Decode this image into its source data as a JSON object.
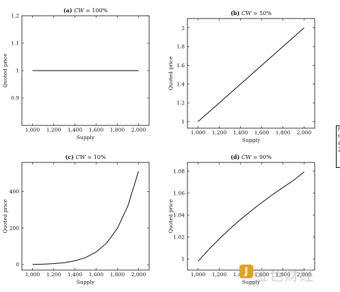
{
  "side_text": [
    "h",
    "n",
    "a",
    "2"
  ],
  "watermark": {
    "logo": "J",
    "text": "金色财经"
  },
  "chart_data": [
    {
      "type": "line",
      "title": "(a) CW = 100%",
      "title_prefix": "(a) ",
      "title_var": "CW",
      "title_rest": " = 100%",
      "xlabel": "Supply",
      "ylabel": "Quoted price",
      "xlim": [
        900,
        2100
      ],
      "ylim": [
        0.8,
        1.2
      ],
      "xticks": [
        1000,
        1200,
        1400,
        1600,
        1800,
        2000
      ],
      "xtick_labels": [
        "1,000",
        "1,200",
        "1,400",
        "1,600",
        "1,800",
        "2,000"
      ],
      "yticks": [
        0.9,
        1,
        1.1,
        1.2
      ],
      "ytick_labels": [
        "0.9",
        "1",
        "1.1",
        "1.2"
      ],
      "x": [
        1000,
        1200,
        1400,
        1600,
        1800,
        2000
      ],
      "y": [
        1,
        1,
        1,
        1,
        1,
        1
      ]
    },
    {
      "type": "line",
      "title": "(b) CW = 50%",
      "title_prefix": "(b) ",
      "title_var": "CW",
      "title_rest": " = 50%",
      "xlabel": "Supply",
      "ylabel": "Quoted price",
      "xlim": [
        900,
        2100
      ],
      "ylim": [
        0.93,
        2.1
      ],
      "xticks": [
        1000,
        1200,
        1400,
        1600,
        1800,
        2000
      ],
      "xtick_labels": [
        "1,000",
        "1,200",
        "1,400",
        "1,600",
        "1,800",
        "2,000"
      ],
      "yticks": [
        1,
        1.2,
        1.4,
        1.6,
        1.8,
        2
      ],
      "ytick_labels": [
        "1",
        "1.2",
        "1.4",
        "1.6",
        "1.8",
        "2"
      ],
      "x": [
        1000,
        1200,
        1400,
        1600,
        1800,
        2000
      ],
      "y": [
        1,
        1.2,
        1.4,
        1.6,
        1.8,
        2
      ]
    },
    {
      "type": "line",
      "title": "(c) CW = 10%",
      "title_prefix": "(c) ",
      "title_var": "CW",
      "title_rest": " = 10%",
      "xlabel": "Supply",
      "ylabel": "Quoted price",
      "xlim": [
        900,
        2100
      ],
      "ylim": [
        -30,
        560
      ],
      "xticks": [
        1000,
        1200,
        1400,
        1600,
        1800,
        2000
      ],
      "xtick_labels": [
        "1,000",
        "1,200",
        "1,400",
        "1,600",
        "1,800",
        "2,000"
      ],
      "yticks": [
        0,
        200,
        400
      ],
      "ytick_labels": [
        "0",
        "200",
        "400"
      ],
      "x": [
        1000,
        1100,
        1200,
        1300,
        1400,
        1500,
        1600,
        1700,
        1800,
        1900,
        2000
      ],
      "y": [
        1,
        2.4,
        5.2,
        10.6,
        20.7,
        38.4,
        68.7,
        118.6,
        198.4,
        322.7,
        512
      ]
    },
    {
      "type": "line",
      "title": "(d) CW = 90%",
      "title_prefix": "(d) ",
      "title_var": "CW",
      "title_rest": " = 90%",
      "xlabel": "Supply",
      "ylabel": "Quoted price",
      "xlim": [
        900,
        2100
      ],
      "ylim": [
        0.99,
        1.088
      ],
      "xticks": [
        1000,
        1200,
        1400,
        1600,
        1800,
        2000
      ],
      "xtick_labels": [
        "1,000",
        "1,200",
        "1,400",
        "1,600",
        "1,800",
        "2,000"
      ],
      "yticks": [
        1,
        1.02,
        1.04,
        1.06,
        1.08
      ],
      "ytick_labels": [
        "1",
        "1.02",
        "1.04",
        "1.06",
        "1.08"
      ],
      "x": [
        1000,
        1100,
        1200,
        1300,
        1400,
        1500,
        1600,
        1700,
        1800,
        1900,
        2000
      ],
      "y": [
        0.998,
        1.0086,
        1.0184,
        1.0275,
        1.036,
        1.0439,
        1.0514,
        1.0585,
        1.0652,
        1.0716,
        1.0793
      ]
    }
  ]
}
